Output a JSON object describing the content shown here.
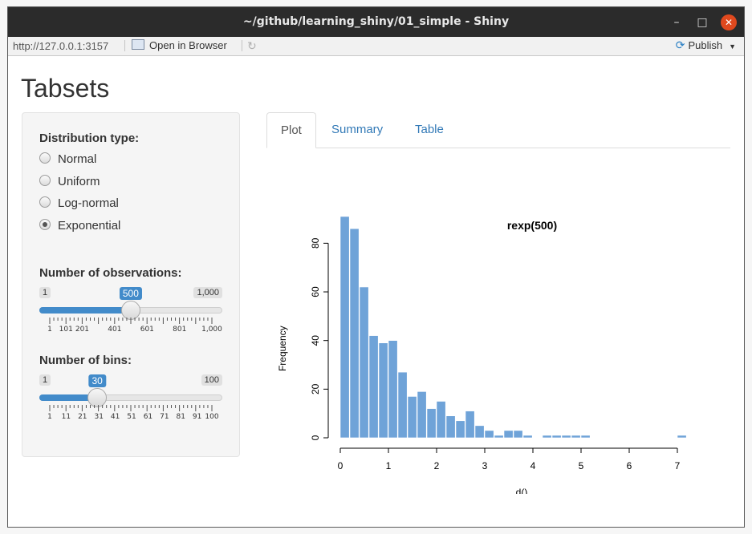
{
  "window": {
    "title": "~/github/learning_shiny/01_simple - Shiny"
  },
  "toolbar": {
    "url": "http://127.0.0.1:3157",
    "open_label": "Open in Browser",
    "publish_label": "Publish"
  },
  "page": {
    "title": "Tabsets"
  },
  "sidebar": {
    "dist_label": "Distribution type:",
    "options": [
      {
        "label": "Normal",
        "checked": false
      },
      {
        "label": "Uniform",
        "checked": false
      },
      {
        "label": "Log-normal",
        "checked": false
      },
      {
        "label": "Exponential",
        "checked": true
      }
    ],
    "obs": {
      "label": "Number of observations:",
      "min": "1",
      "max": "1,000",
      "value": "500",
      "fraction": 0.4995,
      "ticks": [
        "1",
        "101",
        "201",
        "401",
        "601",
        "801",
        "1,000"
      ]
    },
    "bins": {
      "label": "Number of bins:",
      "min": "1",
      "max": "100",
      "value": "30",
      "fraction": 0.2929,
      "ticks": [
        "1",
        "11",
        "21",
        "31",
        "41",
        "51",
        "61",
        "71",
        "81",
        "91",
        "100"
      ]
    }
  },
  "tabs": [
    {
      "label": "Plot",
      "active": true
    },
    {
      "label": "Summary",
      "active": false
    },
    {
      "label": "Table",
      "active": false
    }
  ],
  "chart_data": {
    "type": "bar",
    "title": "rexp(500)",
    "xlabel": "d()",
    "ylabel": "Frequency",
    "bin_width": 0.2,
    "x_start": 0,
    "values": [
      91,
      86,
      62,
      42,
      39,
      40,
      27,
      17,
      19,
      12,
      15,
      9,
      7,
      11,
      5,
      3,
      1,
      3,
      3,
      1,
      0,
      1,
      1,
      1,
      1,
      1,
      0,
      0,
      0,
      0,
      0,
      0,
      0,
      0,
      0,
      1
    ],
    "xticks": [
      0,
      1,
      2,
      3,
      4,
      5,
      6,
      7
    ],
    "yticks": [
      0,
      20,
      40,
      60,
      80
    ],
    "xlim": [
      0,
      7.2
    ],
    "ylim": [
      0,
      91
    ],
    "bar_color": "#6fa3d8"
  }
}
